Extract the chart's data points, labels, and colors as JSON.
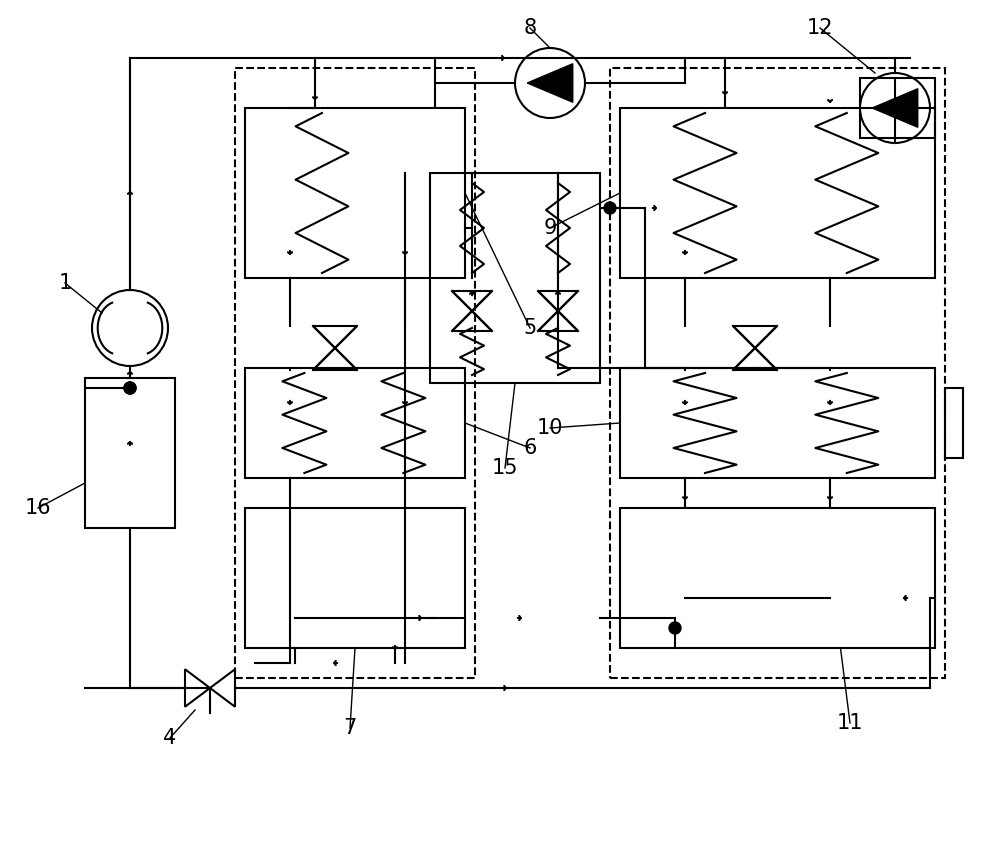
{
  "bg_color": "#ffffff",
  "line_color": "#000000",
  "lw": 1.5,
  "fig_w": 10.0,
  "fig_h": 8.48,
  "dpi": 100
}
